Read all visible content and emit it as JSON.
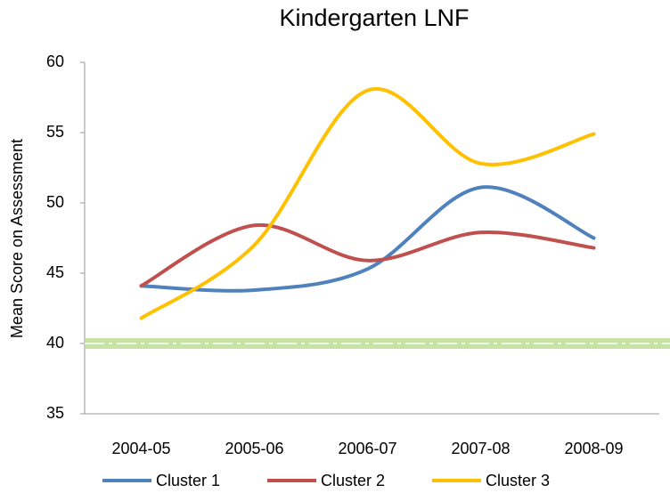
{
  "chart_data": {
    "type": "line",
    "title": "Kindergarten LNF",
    "y_label": "Mean Score on Assessment",
    "categories": [
      "2004-05",
      "2005-06",
      "2006-07",
      "2007-08",
      "2008-09"
    ],
    "series": [
      {
        "name": "Cluster 1",
        "color": "#4f81bd",
        "values": [
          44.1,
          43.8,
          45.3,
          51.1,
          47.5
        ]
      },
      {
        "name": "Cluster 2",
        "color": "#c0504d",
        "values": [
          44.1,
          48.4,
          45.9,
          47.9,
          46.8
        ]
      },
      {
        "name": "Cluster 3",
        "color": "#ffc000",
        "values": [
          41.8,
          47.0,
          58.0,
          52.8,
          54.9
        ]
      }
    ],
    "reference_line": 40,
    "reference_color": "#b8dc8c",
    "ylim": [
      35,
      60
    ],
    "yticks": [
      35,
      40,
      45,
      50,
      55,
      60
    ],
    "smooth": true,
    "legend": "bottom"
  }
}
